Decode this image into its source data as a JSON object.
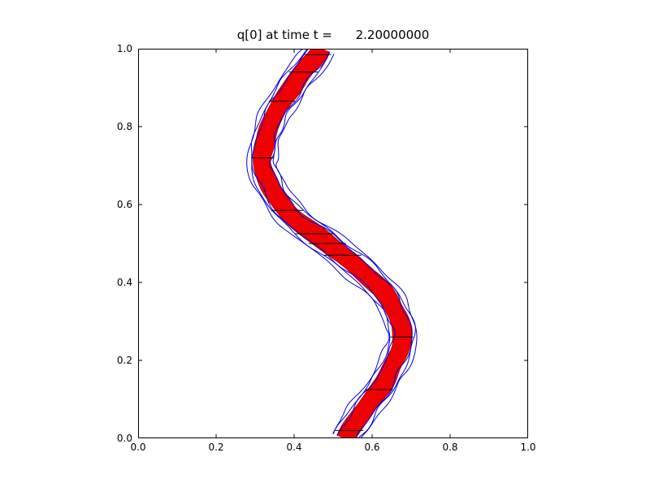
{
  "chart_data": {
    "type": "contour",
    "title": "q[0] at time t =      2.20000000",
    "xlabel": "",
    "ylabel": "",
    "xlim": [
      0.0,
      1.0
    ],
    "ylim": [
      0.0,
      1.0
    ],
    "grid": false,
    "legend": "none",
    "background": "#ffffff",
    "frame_color": "#000000",
    "xticks": {
      "values": [
        0.0,
        0.2,
        0.4,
        0.6,
        0.8,
        1.0
      ],
      "labels": [
        "0.0",
        "0.2",
        "0.4",
        "0.6",
        "0.8",
        "1.0"
      ]
    },
    "yticks": {
      "values": [
        0.0,
        0.2,
        0.4,
        0.6,
        0.8,
        1.0
      ],
      "labels": [
        "0.0",
        "0.2",
        "0.4",
        "0.6",
        "0.8",
        "1.0"
      ]
    },
    "band": {
      "description": "S-shaped advected interface: red filled band (q=1 region) with wobbly blue contour lines on both sides, black grid-edge segments crossing it",
      "centerline_y": [
        0.0,
        0.05,
        0.1,
        0.15,
        0.2,
        0.25,
        0.3,
        0.35,
        0.4,
        0.45,
        0.5,
        0.55,
        0.6,
        0.65,
        0.7,
        0.75,
        0.8,
        0.85,
        0.9,
        0.95,
        1.0
      ],
      "centerline_x": [
        0.53,
        0.565,
        0.6,
        0.634,
        0.66,
        0.675,
        0.672,
        0.648,
        0.605,
        0.55,
        0.485,
        0.42,
        0.368,
        0.336,
        0.32,
        0.322,
        0.338,
        0.36,
        0.392,
        0.432,
        0.468
      ],
      "half_width": 0.023,
      "fill_color": "#ee0000",
      "edge_color": "#bb0000",
      "contour_color": "#0000dd",
      "contour_offsets": [
        0.0,
        0.007,
        0.014
      ],
      "contour_wobble": 0.0032
    },
    "grid_segments_y": [
      0.985,
      0.94,
      0.865,
      0.72,
      0.585,
      0.525,
      0.5,
      0.47,
      0.26,
      0.125,
      0.02
    ],
    "grid_color": "#000000"
  }
}
